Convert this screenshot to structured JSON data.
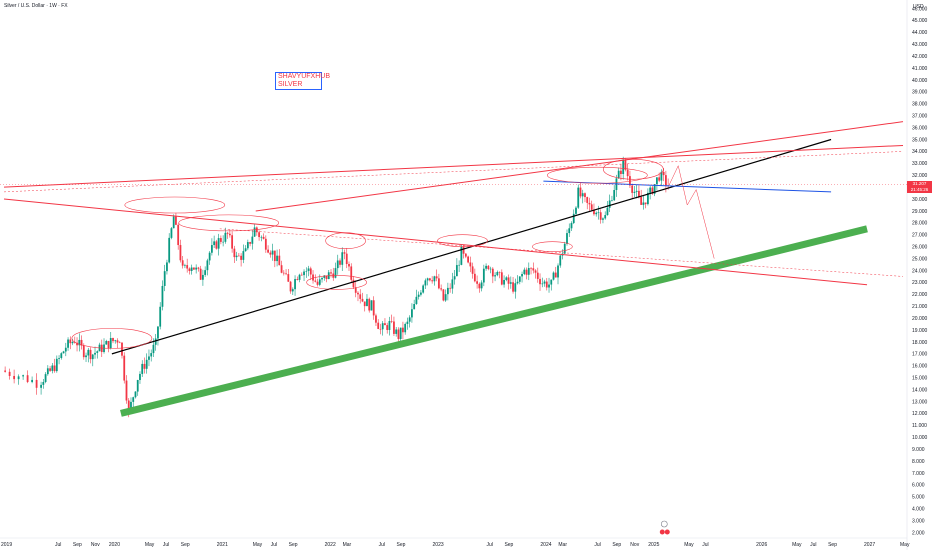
{
  "header": {
    "title": "Silver / U.S. Dollar · 1W · FX",
    "currency": "USD"
  },
  "annotation": {
    "line1": "SHAVYUFXHUB",
    "line2": "SILVER"
  },
  "price_badge": {
    "price": "31.207",
    "countdown": "21:45:26",
    "color": "#f23645"
  },
  "colors": {
    "up_candle": "#089981",
    "down_candle": "#f23645",
    "support_line": "#4caf50",
    "channel_line": "#f23645",
    "trend_line": "#000000",
    "horizontal_line": "#1e53e5",
    "box_border": "#2962ff"
  },
  "chart_data": {
    "type": "candlestick",
    "title": "Silver / U.S. Dollar · 1W · FX",
    "y_axis": {
      "unit": "USD",
      "range": [
        2,
        46
      ],
      "ticks": [
        "46.000",
        "45.000",
        "44.000",
        "43.000",
        "42.000",
        "41.000",
        "40.000",
        "39.000",
        "38.000",
        "37.000",
        "36.000",
        "35.000",
        "34.000",
        "33.000",
        "32.000",
        "31.000",
        "30.000",
        "29.000",
        "28.000",
        "27.000",
        "26.000",
        "25.000",
        "24.000",
        "23.000",
        "22.000",
        "21.000",
        "20.000",
        "19.000",
        "18.000",
        "17.000",
        "16.000",
        "15.000",
        "14.000",
        "13.000",
        "12.000",
        "11.000",
        "10.000",
        "9.000",
        "8.000",
        "7.000",
        "6.000",
        "5.000",
        "4.000",
        "3.000",
        "2.000"
      ]
    },
    "x_axis": {
      "range": [
        "2019-01",
        "2027-05"
      ],
      "ticks": [
        "2019",
        "Jul",
        "Sep",
        "Nov",
        "2020",
        "May",
        "Jul",
        "Sep",
        "2021",
        "May",
        "Jul",
        "Sep",
        "2022",
        "Mar",
        "Jul",
        "Sep",
        "2023",
        "Jul",
        "Sep",
        "2024",
        "Mar",
        "Jul",
        "Sep",
        "Nov",
        "2025",
        "May",
        "Jul",
        "2026",
        "May",
        "Jul",
        "Sep",
        "2027",
        "May"
      ],
      "tick_dates": [
        "2019-01",
        "2019-07",
        "2019-09",
        "2019-11",
        "2020-01",
        "2020-05",
        "2020-07",
        "2020-09",
        "2021-01",
        "2021-05",
        "2021-07",
        "2021-09",
        "2022-01",
        "2022-03",
        "2022-07",
        "2022-09",
        "2023-01",
        "2023-07",
        "2023-09",
        "2024-01",
        "2024-03",
        "2024-07",
        "2024-09",
        "2024-11",
        "2025-01",
        "2025-05",
        "2025-07",
        "2026-01",
        "2026-05",
        "2026-07",
        "2026-09",
        "2027-01",
        "2027-05"
      ]
    },
    "last_price": 31.207,
    "series": [
      {
        "key": "price",
        "points": [
          [
            "2019-01",
            15.6
          ],
          [
            "2019-03",
            15.2
          ],
          [
            "2019-05",
            14.6
          ],
          [
            "2019-06",
            15.3
          ],
          [
            "2019-07",
            16.2
          ],
          [
            "2019-08",
            17.6
          ],
          [
            "2019-09",
            18.2
          ],
          [
            "2019-10",
            17.2
          ],
          [
            "2019-11",
            17.0
          ],
          [
            "2019-12",
            17.5
          ],
          [
            "2020-01",
            18.0
          ],
          [
            "2020-02",
            18.3
          ],
          [
            "2020-03",
            12.0
          ],
          [
            "2020-04",
            15.0
          ],
          [
            "2020-05",
            16.5
          ],
          [
            "2020-06",
            17.8
          ],
          [
            "2020-07",
            24.0
          ],
          [
            "2020-08",
            28.5
          ],
          [
            "2020-09",
            24.0
          ],
          [
            "2020-10",
            24.5
          ],
          [
            "2020-11",
            23.5
          ],
          [
            "2020-12",
            25.5
          ],
          [
            "2021-01",
            26.5
          ],
          [
            "2021-02",
            27.0
          ],
          [
            "2021-03",
            25.0
          ],
          [
            "2021-04",
            25.5
          ],
          [
            "2021-05",
            27.5
          ],
          [
            "2021-06",
            26.5
          ],
          [
            "2021-07",
            25.5
          ],
          [
            "2021-08",
            24.0
          ],
          [
            "2021-09",
            22.5
          ],
          [
            "2021-10",
            24.0
          ],
          [
            "2021-11",
            24.0
          ],
          [
            "2021-12",
            22.8
          ],
          [
            "2022-01",
            23.5
          ],
          [
            "2022-02",
            24.0
          ],
          [
            "2022-03",
            25.5
          ],
          [
            "2022-04",
            23.0
          ],
          [
            "2022-05",
            21.5
          ],
          [
            "2022-06",
            21.0
          ],
          [
            "2022-07",
            19.0
          ],
          [
            "2022-08",
            19.5
          ],
          [
            "2022-09",
            18.5
          ],
          [
            "2022-10",
            19.5
          ],
          [
            "2022-11",
            21.5
          ],
          [
            "2022-12",
            23.5
          ],
          [
            "2023-01",
            23.5
          ],
          [
            "2023-02",
            21.5
          ],
          [
            "2023-03",
            23.0
          ],
          [
            "2023-04",
            25.5
          ],
          [
            "2023-05",
            24.0
          ],
          [
            "2023-06",
            23.0
          ],
          [
            "2023-07",
            24.5
          ],
          [
            "2023-08",
            23.5
          ],
          [
            "2023-09",
            23.0
          ],
          [
            "2023-10",
            22.5
          ],
          [
            "2023-11",
            24.0
          ],
          [
            "2023-12",
            24.0
          ],
          [
            "2024-01",
            23.0
          ],
          [
            "2024-02",
            22.8
          ],
          [
            "2024-03",
            25.0
          ],
          [
            "2024-04",
            27.5
          ],
          [
            "2024-05",
            30.5
          ],
          [
            "2024-06",
            29.5
          ],
          [
            "2024-07",
            29.0
          ],
          [
            "2024-08",
            28.5
          ],
          [
            "2024-09",
            31.0
          ],
          [
            "2024-10",
            33.0
          ],
          [
            "2024-11",
            31.0
          ],
          [
            "2024-12",
            29.5
          ],
          [
            "2025-01",
            30.5
          ],
          [
            "2025-02",
            32.0
          ],
          [
            "2025-03",
            31.2
          ]
        ]
      }
    ],
    "drawings": [
      {
        "kind": "thick_support_line",
        "from": [
          "2020-02",
          12.0
        ],
        "to": [
          "2027-01",
          27.5
        ]
      },
      {
        "kind": "trend_line",
        "from": [
          "2020-01",
          17.0
        ],
        "to": [
          "2026-09",
          35.0
        ]
      },
      {
        "kind": "horizontal_line",
        "from": [
          "2024-01",
          31.5
        ],
        "to": [
          "2026-09",
          30.6
        ]
      },
      {
        "kind": "channel_line",
        "from": [
          "2019-01",
          31.0
        ],
        "to": [
          "2027-05",
          34.5
        ]
      },
      {
        "kind": "channel_line",
        "from": [
          "2019-01",
          30.0
        ],
        "to": [
          "2027-01",
          22.8
        ]
      },
      {
        "kind": "channel_line",
        "from": [
          "2021-05",
          29.0
        ],
        "to": [
          "2027-05",
          36.5
        ]
      }
    ]
  }
}
